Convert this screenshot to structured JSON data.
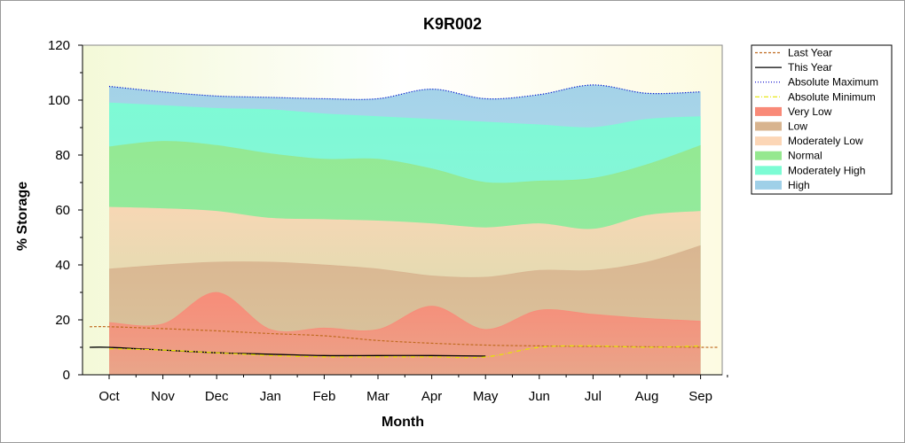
{
  "chart_data": {
    "type": "area",
    "title": "K9R002",
    "xlabel": "Month",
    "ylabel": "% Storage",
    "ylim": [
      0,
      120
    ],
    "yticks": [
      "0",
      "20",
      "40",
      "60",
      "80",
      "100",
      "120"
    ],
    "categories": [
      "Oct",
      "Nov",
      "Dec",
      "Jan",
      "Feb",
      "Mar",
      "Apr",
      "May",
      "Jun",
      "Jul",
      "Aug",
      "Sep"
    ],
    "legend_position": "right",
    "bands": [
      {
        "name": "Very Low",
        "color": "#f98a78",
        "upper": [
          19,
          18.5,
          30,
          16.5,
          17,
          16.5,
          25,
          16.5,
          23.5,
          22,
          20.5,
          19.5
        ]
      },
      {
        "name": "Low",
        "color": "#d8b48f",
        "upper": [
          38.5,
          40,
          41,
          41,
          40,
          38.5,
          36,
          35.5,
          38,
          38,
          41,
          47
        ]
      },
      {
        "name": "Moderately Low",
        "color": "#fcd6b6",
        "upper": [
          61,
          60.5,
          59.5,
          57,
          56.5,
          56,
          55,
          53.5,
          55,
          53,
          58,
          59.5
        ]
      },
      {
        "name": "Normal",
        "color": "#95e88f",
        "upper": [
          83,
          85,
          83.5,
          80.5,
          78.5,
          78.5,
          75,
          70,
          70.5,
          71.5,
          76.5,
          83.5
        ]
      },
      {
        "name": "Moderately High",
        "color": "#7cfcd4",
        "upper": [
          99,
          98,
          97,
          96.5,
          95,
          94,
          93,
          92,
          91,
          90,
          93,
          94
        ]
      },
      {
        "name": "High",
        "color": "#9fd0e8",
        "upper": [
          105,
          103,
          101.5,
          101,
          100.5,
          100.5,
          104,
          100.5,
          102,
          105.5,
          102.5,
          103
        ]
      }
    ],
    "lines": [
      {
        "name": "Last Year",
        "color": "#c06b20",
        "style": "dashed",
        "values": [
          17.5,
          16.8,
          16,
          15,
          14.2,
          12.5,
          11.5,
          10.8,
          10.5,
          10.3,
          10.2,
          10
        ]
      },
      {
        "name": "This Year",
        "color": "#000000",
        "style": "solid",
        "values": [
          10,
          9,
          8,
          7.5,
          7,
          7,
          7,
          6.8
        ]
      },
      {
        "name": "Absolute Maximum",
        "color": "#0000cc",
        "style": "dotted",
        "values": [
          105,
          103,
          101.5,
          101,
          100.5,
          100.5,
          104,
          100.5,
          102,
          105.5,
          102.5,
          103
        ]
      },
      {
        "name": "Absolute Minimum",
        "color": "#e6e600",
        "style": "dashdot",
        "values": [
          9.5,
          9,
          8,
          7,
          6.5,
          6.5,
          6.5,
          6.5,
          10,
          10.5,
          10,
          10.5
        ]
      }
    ],
    "legend": [
      {
        "name": "Last Year",
        "kind": "line",
        "color": "#c06b20",
        "style": "dashed"
      },
      {
        "name": "This Year",
        "kind": "line",
        "color": "#000000",
        "style": "solid"
      },
      {
        "name": "Absolute Maximum",
        "kind": "line",
        "color": "#0000cc",
        "style": "dotted"
      },
      {
        "name": "Absolute Minimum",
        "kind": "line",
        "color": "#e6e600",
        "style": "dashdot"
      },
      {
        "name": "Very Low",
        "kind": "band",
        "color": "#f98a78"
      },
      {
        "name": "Low",
        "kind": "band",
        "color": "#d8b48f"
      },
      {
        "name": "Moderately Low",
        "kind": "band",
        "color": "#fcd6b6"
      },
      {
        "name": "Normal",
        "kind": "band",
        "color": "#95e88f"
      },
      {
        "name": "Moderately High",
        "kind": "band",
        "color": "#7cfcd4"
      },
      {
        "name": "High",
        "kind": "band",
        "color": "#9fd0e8"
      }
    ],
    "plot_background": "#fdfde0"
  }
}
